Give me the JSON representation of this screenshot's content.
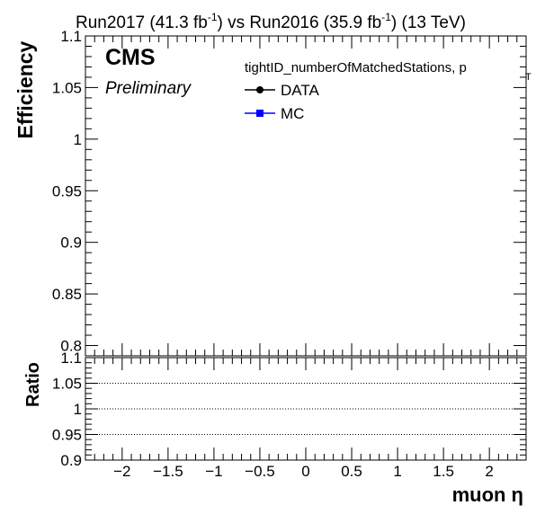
{
  "header": {
    "run_a": "Run2017 (41.3 fb",
    "exp_a": "-1",
    "mid": ") vs Run2016 (35.9 fb",
    "exp_b": "-1",
    "tail": ") (13 TeV)"
  },
  "cms_label": "CMS",
  "prelim_label": "Preliminary",
  "legend": {
    "title": "tightID_numberOfMatchedStations, p",
    "title_sub": "T",
    "entries": [
      {
        "label": "DATA",
        "color": "#000000",
        "marker": "circle"
      },
      {
        "label": "MC",
        "color": "#0000ff",
        "marker": "square"
      }
    ]
  },
  "chart_data": [
    {
      "type": "scatter",
      "panel": "top",
      "ylabel": "Efficiency",
      "xlim": [
        -2.4,
        2.4
      ],
      "ylim": [
        0.79,
        1.1
      ],
      "yticks": [
        {
          "v": 0.8,
          "label": "0.8"
        },
        {
          "v": 0.85,
          "label": "0.85"
        },
        {
          "v": 0.9,
          "label": "0.9"
        },
        {
          "v": 0.95,
          "label": "0.95"
        },
        {
          "v": 1.0,
          "label": "1"
        },
        {
          "v": 1.05,
          "label": "1.05"
        },
        {
          "v": 1.1,
          "label": "1.1"
        }
      ],
      "series": [
        {
          "name": "DATA",
          "x": [],
          "y": []
        },
        {
          "name": "MC",
          "x": [],
          "y": []
        }
      ]
    },
    {
      "type": "scatter",
      "panel": "ratio",
      "ylabel": "Ratio",
      "xlabel": "muon η",
      "xlim": [
        -2.4,
        2.4
      ],
      "ylim": [
        0.9,
        1.1
      ],
      "yticks": [
        {
          "v": 0.9,
          "label": "0.9"
        },
        {
          "v": 0.95,
          "label": "0.95"
        },
        {
          "v": 1.0,
          "label": "1"
        },
        {
          "v": 1.05,
          "label": "1.05"
        },
        {
          "v": 1.1,
          "label": "1.1"
        }
      ],
      "reference_lines": [
        0.95,
        1.0,
        1.05
      ],
      "xticks": [
        {
          "v": -2,
          "label": "−2"
        },
        {
          "v": -1.5,
          "label": "−1.5"
        },
        {
          "v": -1,
          "label": "−1"
        },
        {
          "v": -0.5,
          "label": "−0.5"
        },
        {
          "v": 0,
          "label": "0"
        },
        {
          "v": 0.5,
          "label": "0.5"
        },
        {
          "v": 1,
          "label": "1"
        },
        {
          "v": 1.5,
          "label": "1.5"
        },
        {
          "v": 2,
          "label": "2"
        }
      ],
      "series": []
    }
  ]
}
